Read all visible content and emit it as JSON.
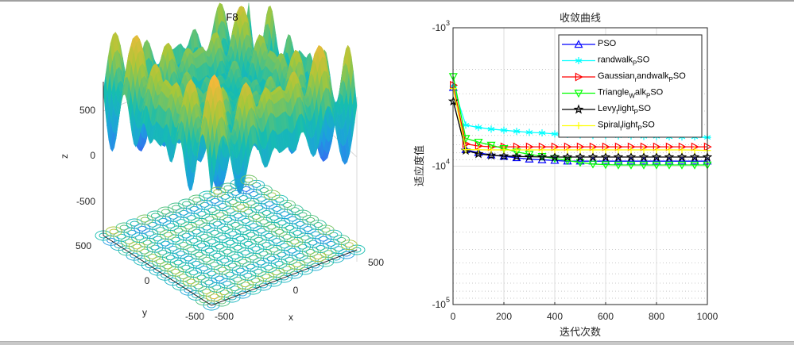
{
  "chart_data": [
    {
      "type": "surface3d",
      "title": "F8",
      "xlabel": "x",
      "ylabel": "y",
      "zlabel": "z",
      "xlim": [
        -500,
        500
      ],
      "ylim": [
        -500,
        500
      ],
      "zlim": [
        -800,
        800
      ],
      "x_ticks": [
        "-500",
        "0",
        "500"
      ],
      "y_ticks": [
        "-500",
        "0",
        "500"
      ],
      "z_ticks": [
        "500",
        "0",
        "-500"
      ],
      "colormap": "parula",
      "has_contour": true
    },
    {
      "type": "line",
      "title": "收敛曲线",
      "xlabel": "迭代次数",
      "ylabel": "适应度值",
      "xlim": [
        0,
        1000
      ],
      "ylim": [
        -100000,
        -1000
      ],
      "yscale": "log-negative",
      "x_ticks": [
        "0",
        "200",
        "400",
        "600",
        "800",
        "1000"
      ],
      "y_ticks": [
        {
          "base": "-10",
          "exp": "3"
        },
        {
          "base": "-10",
          "exp": "4"
        },
        {
          "base": "-10",
          "exp": "5"
        }
      ],
      "grid": true,
      "legend_position": "top-right",
      "x": [
        1,
        50,
        100,
        150,
        200,
        250,
        300,
        350,
        400,
        450,
        500,
        550,
        600,
        650,
        700,
        750,
        800,
        850,
        900,
        950,
        1000
      ],
      "series": [
        {
          "name": "PSO",
          "legend_parts": [
            [
              "PSO",
              ""
            ]
          ],
          "color": "#0000ff",
          "marker": "triangle-up",
          "values": [
            -2700,
            -7600,
            -8000,
            -8300,
            -8500,
            -8700,
            -8900,
            -9000,
            -9100,
            -9200,
            -9200,
            -9200,
            -9200,
            -9200,
            -9200,
            -9200,
            -9200,
            -9200,
            -9200,
            -9200,
            -9200
          ]
        },
        {
          "name": "randwalk_PSO",
          "legend_parts": [
            [
              "randwalk",
              ""
            ],
            [
              "P",
              "sub"
            ],
            [
              "SO",
              ""
            ]
          ],
          "color": "#00ffff",
          "marker": "asterisk",
          "values": [
            -2650,
            -5050,
            -5250,
            -5400,
            -5500,
            -5600,
            -5700,
            -5750,
            -5850,
            -5900,
            -5950,
            -6000,
            -6000,
            -6050,
            -6050,
            -6100,
            -6100,
            -6150,
            -6150,
            -6150,
            -6200
          ]
        },
        {
          "name": "Gaussian_randwalk_PSO",
          "legend_parts": [
            [
              "Gaussian",
              ""
            ],
            [
              "r",
              "sub"
            ],
            [
              "andwalk",
              ""
            ],
            [
              "P",
              "sub"
            ],
            [
              "SO",
              ""
            ]
          ],
          "color": "#ff0000",
          "marker": "triangle-right",
          "values": [
            -2600,
            -6900,
            -7150,
            -7250,
            -7250,
            -7250,
            -7250,
            -7250,
            -7250,
            -7250,
            -7250,
            -7250,
            -7250,
            -7250,
            -7250,
            -7250,
            -7250,
            -7250,
            -7250,
            -7250,
            -7250
          ]
        },
        {
          "name": "TriangleWalk_PSO",
          "legend_parts": [
            [
              "Triangle",
              ""
            ],
            [
              "W",
              "sub"
            ],
            [
              "alk",
              ""
            ],
            [
              "P",
              "sub"
            ],
            [
              "SO",
              ""
            ]
          ],
          "color": "#00ff00",
          "marker": "triangle-down",
          "values": [
            -2250,
            -6300,
            -6700,
            -7050,
            -7450,
            -7900,
            -8200,
            -8500,
            -8800,
            -9100,
            -9400,
            -9650,
            -9750,
            -9800,
            -9800,
            -9800,
            -9800,
            -9800,
            -9800,
            -9800,
            -9800
          ]
        },
        {
          "name": "Levyflight_PSO",
          "legend_parts": [
            [
              "Levy",
              ""
            ],
            [
              "f",
              "sub"
            ],
            [
              "light",
              ""
            ],
            [
              "P",
              "sub"
            ],
            [
              "SO",
              ""
            ]
          ],
          "color": "#000000",
          "marker": "pentagram",
          "values": [
            -3400,
            -7700,
            -8150,
            -8350,
            -8450,
            -8500,
            -8550,
            -8580,
            -8590,
            -8590,
            -8590,
            -8590,
            -8590,
            -8590,
            -8590,
            -8590,
            -8590,
            -8590,
            -8590,
            -8590,
            -8590
          ]
        },
        {
          "name": "Spiralflight_PSO",
          "legend_parts": [
            [
              "Spiral",
              ""
            ],
            [
              "f",
              "sub"
            ],
            [
              "light",
              ""
            ],
            [
              "P",
              "sub"
            ],
            [
              "SO",
              ""
            ]
          ],
          "color": "#ffff00",
          "marker": "plus",
          "values": [
            -2750,
            -7600,
            -7620,
            -7630,
            -7630,
            -7630,
            -7630,
            -7630,
            -7630,
            -7630,
            -7630,
            -7630,
            -7630,
            -7630,
            -7630,
            -7630,
            -7630,
            -7630,
            -7630,
            -7650,
            -7700
          ]
        }
      ]
    }
  ]
}
